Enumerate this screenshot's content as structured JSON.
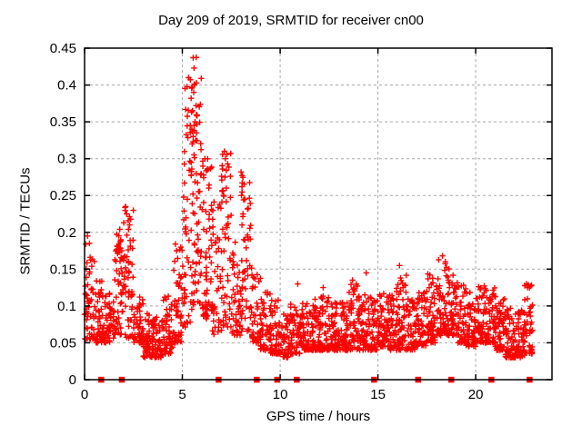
{
  "figure": {
    "title": "Day 209 of 2019, SRMTID for receiver cn00",
    "xlabel": "GPS time / hours",
    "ylabel": "SRMTID / TECUs"
  },
  "chart_data": {
    "type": "scatter",
    "title": "Day 209 of 2019, SRMTID for receiver cn00",
    "xlabel": "GPS time / hours",
    "ylabel": "SRMTID / TECUs",
    "xlim": [
      0,
      23.9
    ],
    "ylim": [
      0,
      0.45
    ],
    "xtick_values": [
      0,
      5,
      10,
      15,
      20
    ],
    "xtick_labels": [
      "0",
      "5",
      "10",
      "15",
      "20"
    ],
    "ytick_values": [
      0,
      0.05,
      0.1,
      0.15,
      0.2,
      0.25,
      0.3,
      0.35,
      0.4,
      0.45
    ],
    "ytick_labels": [
      "0",
      "0.05",
      "0.1",
      "0.15",
      "0.2",
      "0.25",
      "0.3",
      "0.35",
      "0.4",
      "0.45"
    ],
    "grid": "dashed",
    "legend": "none",
    "marker": "plus",
    "marker_color": "#ff0000",
    "grid_color": "#a8a8a8",
    "axis_color": "#000000",
    "series_name": "SRMTID",
    "density_bins": [
      [
        0.0,
        0.5,
        0.055,
        0.185,
        55
      ],
      [
        0.5,
        1.0,
        0.05,
        0.135,
        50
      ],
      [
        1.0,
        1.5,
        0.05,
        0.12,
        50
      ],
      [
        1.5,
        2.0,
        0.06,
        0.205,
        55
      ],
      [
        2.0,
        2.5,
        0.055,
        0.235,
        55
      ],
      [
        2.5,
        3.0,
        0.05,
        0.115,
        50
      ],
      [
        3.0,
        3.5,
        0.03,
        0.09,
        55
      ],
      [
        3.5,
        4.0,
        0.03,
        0.085,
        55
      ],
      [
        4.0,
        4.5,
        0.035,
        0.115,
        50
      ],
      [
        4.5,
        5.0,
        0.05,
        0.185,
        50
      ],
      [
        5.0,
        5.5,
        0.07,
        0.41,
        60
      ],
      [
        5.5,
        6.0,
        0.1,
        0.44,
        60
      ],
      [
        6.0,
        6.5,
        0.08,
        0.3,
        55
      ],
      [
        6.5,
        7.0,
        0.06,
        0.25,
        45
      ],
      [
        7.0,
        7.5,
        0.07,
        0.31,
        50
      ],
      [
        7.5,
        8.0,
        0.06,
        0.2,
        45
      ],
      [
        8.0,
        8.5,
        0.065,
        0.285,
        50
      ],
      [
        8.5,
        9.0,
        0.05,
        0.155,
        45
      ],
      [
        9.0,
        9.5,
        0.04,
        0.12,
        50
      ],
      [
        9.5,
        10.0,
        0.035,
        0.11,
        50
      ],
      [
        10.0,
        10.5,
        0.03,
        0.09,
        50
      ],
      [
        10.5,
        11.0,
        0.035,
        0.105,
        50
      ],
      [
        11.0,
        11.5,
        0.04,
        0.105,
        55
      ],
      [
        11.5,
        12.0,
        0.04,
        0.11,
        55
      ],
      [
        12.0,
        12.5,
        0.04,
        0.115,
        55
      ],
      [
        12.5,
        13.0,
        0.04,
        0.105,
        55
      ],
      [
        13.0,
        13.5,
        0.04,
        0.11,
        55
      ],
      [
        13.5,
        14.0,
        0.04,
        0.135,
        55
      ],
      [
        14.0,
        14.5,
        0.04,
        0.125,
        55
      ],
      [
        14.5,
        15.0,
        0.04,
        0.115,
        50
      ],
      [
        15.0,
        15.5,
        0.045,
        0.12,
        55
      ],
      [
        15.5,
        16.0,
        0.04,
        0.125,
        55
      ],
      [
        16.0,
        16.5,
        0.04,
        0.15,
        55
      ],
      [
        16.5,
        17.0,
        0.04,
        0.11,
        50
      ],
      [
        17.0,
        17.5,
        0.045,
        0.12,
        50
      ],
      [
        17.5,
        18.0,
        0.05,
        0.145,
        55
      ],
      [
        18.0,
        18.5,
        0.06,
        0.165,
        55
      ],
      [
        18.5,
        19.0,
        0.06,
        0.155,
        55
      ],
      [
        19.0,
        19.5,
        0.05,
        0.135,
        55
      ],
      [
        19.5,
        20.0,
        0.045,
        0.12,
        55
      ],
      [
        20.0,
        20.5,
        0.05,
        0.13,
        55
      ],
      [
        20.5,
        21.0,
        0.05,
        0.125,
        55
      ],
      [
        21.0,
        21.5,
        0.04,
        0.115,
        55
      ],
      [
        21.5,
        22.0,
        0.03,
        0.1,
        60
      ],
      [
        22.0,
        22.5,
        0.03,
        0.095,
        60
      ],
      [
        22.5,
        22.9,
        0.035,
        0.13,
        40
      ]
    ],
    "peak_points": [
      [
        0.15,
        0.195
      ],
      [
        0.25,
        0.185
      ],
      [
        1.8,
        0.204
      ],
      [
        1.85,
        0.19
      ],
      [
        1.9,
        0.175
      ],
      [
        2.1,
        0.235
      ],
      [
        2.15,
        0.225
      ],
      [
        2.3,
        0.21
      ],
      [
        5.55,
        0.437
      ],
      [
        5.6,
        0.423
      ],
      [
        5.62,
        0.4
      ],
      [
        5.5,
        0.397
      ],
      [
        5.58,
        0.39
      ],
      [
        5.45,
        0.382
      ],
      [
        5.7,
        0.372
      ],
      [
        5.52,
        0.365
      ],
      [
        5.75,
        0.358
      ],
      [
        5.65,
        0.35
      ],
      [
        5.6,
        0.345
      ],
      [
        5.48,
        0.34
      ],
      [
        5.72,
        0.335
      ],
      [
        5.55,
        0.33
      ],
      [
        5.68,
        0.325
      ],
      [
        5.5,
        0.32
      ],
      [
        6.15,
        0.3
      ],
      [
        6.3,
        0.285
      ],
      [
        6.35,
        0.26
      ],
      [
        7.15,
        0.31
      ],
      [
        7.2,
        0.3
      ],
      [
        7.18,
        0.275
      ],
      [
        7.25,
        0.26
      ],
      [
        7.1,
        0.25
      ],
      [
        8.0,
        0.282
      ],
      [
        8.05,
        0.262
      ],
      [
        8.02,
        0.25
      ],
      [
        8.1,
        0.225
      ],
      [
        8.05,
        0.21
      ],
      [
        10.9,
        0.13
      ],
      [
        12.2,
        0.125
      ],
      [
        13.7,
        0.135
      ],
      [
        14.4,
        0.145
      ],
      [
        16.1,
        0.155
      ],
      [
        18.3,
        0.168
      ],
      [
        18.45,
        0.16
      ],
      [
        22.6,
        0.13
      ],
      [
        22.65,
        0.125
      ]
    ],
    "gap_marker_hours": [
      0.85,
      1.9,
      6.85,
      8.8,
      9.85,
      10.85,
      14.8,
      17.05,
      18.75,
      20.8,
      22.75
    ],
    "gap_marker_color": "#ff0000"
  }
}
